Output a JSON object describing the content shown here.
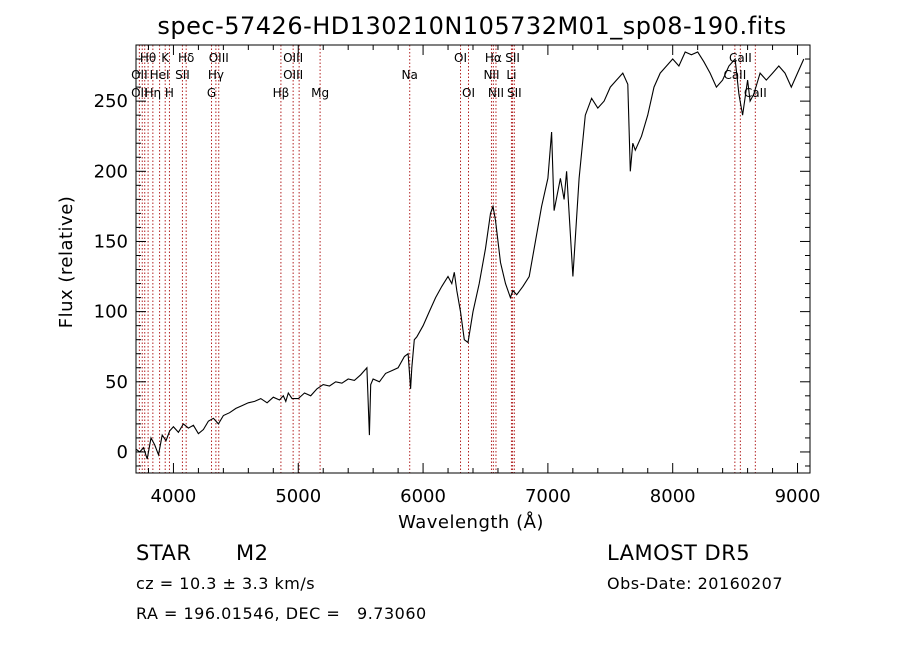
{
  "chart_data": {
    "type": "line",
    "title": "spec-57426-HD130210N105732M01_sp08-190.fits",
    "xlabel": "Wavelength (Å)",
    "ylabel": "Flux (relative)",
    "xlim": [
      3700,
      9100
    ],
    "ylim": [
      -15,
      290
    ],
    "xticks": [
      4000,
      5000,
      6000,
      7000,
      8000,
      9000
    ],
    "yticks": [
      0,
      50,
      100,
      150,
      200,
      250
    ],
    "grid": false,
    "line_color": "#000000",
    "marker_color": "#b22222",
    "series": [
      {
        "x": [
          3700,
          3730,
          3760,
          3790,
          3820,
          3850,
          3880,
          3910,
          3940,
          3970,
          4000,
          4040,
          4080,
          4120,
          4160,
          4200,
          4240,
          4280,
          4320,
          4360,
          4400,
          4450,
          4500,
          4550,
          4600,
          4650,
          4700,
          4750,
          4800,
          4850,
          4880,
          4900,
          4920,
          4950,
          5000,
          5050,
          5100,
          5150,
          5200,
          5250,
          5300,
          5350,
          5400,
          5450,
          5500,
          5550,
          5570,
          5580,
          5600,
          5650,
          5700,
          5750,
          5800,
          5850,
          5880,
          5900,
          5910,
          5930,
          5950,
          6000,
          6050,
          6100,
          6150,
          6200,
          6230,
          6250,
          6270,
          6300,
          6330,
          6360,
          6400,
          6450,
          6500,
          6540,
          6560,
          6580,
          6620,
          6660,
          6700,
          6720,
          6750,
          6800,
          6850,
          6900,
          6950,
          7000,
          7030,
          7050,
          7100,
          7130,
          7150,
          7200,
          7250,
          7300,
          7350,
          7400,
          7450,
          7500,
          7550,
          7600,
          7640,
          7660,
          7680,
          7700,
          7750,
          7800,
          7850,
          7900,
          7950,
          8000,
          8050,
          8100,
          8150,
          8200,
          8250,
          8300,
          8350,
          8400,
          8450,
          8500,
          8530,
          8560,
          8600,
          8620,
          8650,
          8700,
          8750,
          8800,
          8850,
          8900,
          8950,
          9000,
          9050
        ],
        "y": [
          2,
          0,
          3,
          -5,
          10,
          5,
          -2,
          12,
          8,
          15,
          18,
          14,
          20,
          17,
          19,
          13,
          16,
          22,
          24,
          20,
          26,
          28,
          31,
          33,
          35,
          36,
          38,
          35,
          39,
          37,
          40,
          36,
          42,
          38,
          38,
          42,
          40,
          45,
          48,
          47,
          50,
          49,
          52,
          51,
          55,
          60,
          12,
          48,
          52,
          50,
          56,
          58,
          60,
          68,
          70,
          45,
          60,
          80,
          82,
          90,
          100,
          110,
          118,
          125,
          120,
          128,
          115,
          100,
          80,
          78,
          100,
          120,
          145,
          170,
          175,
          165,
          135,
          120,
          110,
          115,
          112,
          118,
          125,
          150,
          175,
          195,
          228,
          172,
          195,
          180,
          200,
          125,
          195,
          240,
          252,
          245,
          250,
          260,
          265,
          270,
          262,
          200,
          220,
          215,
          225,
          240,
          260,
          270,
          275,
          280,
          275,
          285,
          283,
          285,
          278,
          270,
          260,
          265,
          275,
          280,
          255,
          240,
          265,
          250,
          255,
          270,
          265,
          270,
          275,
          270,
          260,
          270,
          280
        ]
      }
    ],
    "annotations": [
      {
        "label": "Hθ",
        "x": 3797,
        "row": 1
      },
      {
        "label": "OII",
        "x": 3727,
        "row": 2
      },
      {
        "label": "OII",
        "x": 3727,
        "row": 3
      },
      {
        "label": "HeI",
        "x": 3889,
        "row": 2
      },
      {
        "label": "Hη",
        "x": 3835,
        "row": 3
      },
      {
        "label": "K",
        "x": 3934,
        "row": 1
      },
      {
        "label": "H",
        "x": 3968,
        "row": 3
      },
      {
        "label": "Hδ",
        "x": 4102,
        "row": 1
      },
      {
        "label": "SII",
        "x": 4072,
        "row": 2
      },
      {
        "label": "OIII",
        "x": 4363,
        "row": 1
      },
      {
        "label": "Hγ",
        "x": 4340,
        "row": 2
      },
      {
        "label": "G",
        "x": 4305,
        "row": 3
      },
      {
        "label": "OIII",
        "x": 4959,
        "row": 1
      },
      {
        "label": "OIII",
        "x": 4959,
        "row": 2
      },
      {
        "label": "Hβ",
        "x": 4861,
        "row": 3
      },
      {
        "label": "Mg",
        "x": 5175,
        "row": 3
      },
      {
        "label": "Na",
        "x": 5893,
        "row": 2
      },
      {
        "label": "OI",
        "x": 6300,
        "row": 1
      },
      {
        "label": "OI",
        "x": 6364,
        "row": 3
      },
      {
        "label": "Hα",
        "x": 6563,
        "row": 1
      },
      {
        "label": "SII",
        "x": 6717,
        "row": 1
      },
      {
        "label": "NII",
        "x": 6548,
        "row": 2
      },
      {
        "label": "Li",
        "x": 6708,
        "row": 2
      },
      {
        "label": "NII",
        "x": 6584,
        "row": 3
      },
      {
        "label": "SII",
        "x": 6731,
        "row": 3
      },
      {
        "label": "CaII",
        "x": 8542,
        "row": 1
      },
      {
        "label": "CaII",
        "x": 8498,
        "row": 2
      },
      {
        "label": "CaII",
        "x": 8662,
        "row": 3
      }
    ],
    "marker_lines": [
      3727,
      3750,
      3770,
      3797,
      3835,
      3889,
      3934,
      3968,
      4072,
      4102,
      4305,
      4340,
      4363,
      4861,
      4959,
      5007,
      5175,
      5893,
      6300,
      6364,
      6548,
      6563,
      6584,
      6708,
      6717,
      6731,
      8498,
      8542,
      8662
    ]
  },
  "info": {
    "object_type": "STAR",
    "subclass": "M2",
    "survey": "LAMOST DR5",
    "redshift": "cz = 10.3 ± 3.3 km/s",
    "obs_date": "Obs-Date: 20160207",
    "coords": "RA = 196.01546, DEC =   9.73060"
  }
}
